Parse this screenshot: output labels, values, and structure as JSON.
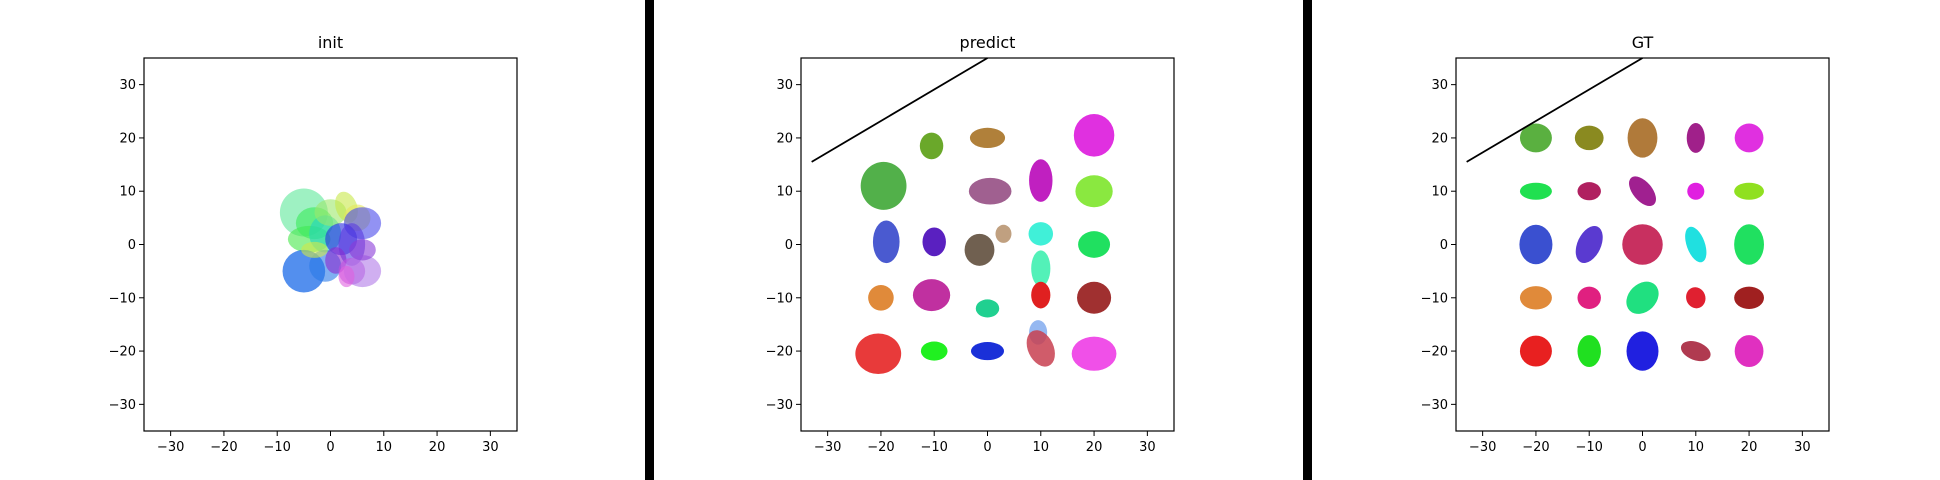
{
  "chart_data": [
    {
      "type": "scatter",
      "title": "init",
      "xlim": [
        -35,
        35
      ],
      "ylim": [
        -35,
        35
      ],
      "ticks": [
        -30,
        -20,
        -10,
        0,
        10,
        20,
        30
      ],
      "grid": false,
      "line": null,
      "ellipses": [
        {
          "cx": -5,
          "cy": 6,
          "rx": 4.5,
          "ry": 4.5,
          "angle": 0,
          "color": "#5ee89a",
          "opacity": 0.6
        },
        {
          "cx": -4,
          "cy": 1,
          "rx": 4,
          "ry": 2.5,
          "angle": 0,
          "color": "#46e84a",
          "opacity": 0.6
        },
        {
          "cx": -3,
          "cy": 4,
          "rx": 3.5,
          "ry": 3,
          "angle": 0,
          "color": "#3aeb5a",
          "opacity": 0.6
        },
        {
          "cx": -1,
          "cy": 2,
          "rx": 3,
          "ry": 3.5,
          "angle": 0,
          "color": "#22d6c0",
          "opacity": 0.6
        },
        {
          "cx": 0,
          "cy": 6,
          "rx": 3,
          "ry": 2.5,
          "angle": 0,
          "color": "#9ce86a",
          "opacity": 0.6
        },
        {
          "cx": 3,
          "cy": 7,
          "rx": 2,
          "ry": 3,
          "angle": 20,
          "color": "#c8e84a",
          "opacity": 0.6
        },
        {
          "cx": 5,
          "cy": 5,
          "rx": 2.5,
          "ry": 2.5,
          "angle": 0,
          "color": "#e4e85a",
          "opacity": 0.6
        },
        {
          "cx": 6,
          "cy": 4,
          "rx": 3.5,
          "ry": 3,
          "angle": 0,
          "color": "#4a4aeb",
          "opacity": 0.6
        },
        {
          "cx": 2,
          "cy": 1,
          "rx": 3,
          "ry": 3,
          "angle": 0,
          "color": "#2a2ae0",
          "opacity": 0.6
        },
        {
          "cx": 4,
          "cy": 0,
          "rx": 2.5,
          "ry": 4,
          "angle": 0,
          "color": "#5a3ae0",
          "opacity": 0.6
        },
        {
          "cx": -5,
          "cy": -5,
          "rx": 4,
          "ry": 4,
          "angle": 0,
          "color": "#1a6ae8",
          "opacity": 0.75
        },
        {
          "cx": -1,
          "cy": -4,
          "rx": 3,
          "ry": 3,
          "angle": 0,
          "color": "#2a7ae8",
          "opacity": 0.6
        },
        {
          "cx": 1,
          "cy": -3,
          "rx": 2,
          "ry": 2.5,
          "angle": 0,
          "color": "#8a2ad0",
          "opacity": 0.6
        },
        {
          "cx": 4,
          "cy": -5,
          "rx": 2.5,
          "ry": 2.5,
          "angle": 0,
          "color": "#c050e0",
          "opacity": 0.6
        },
        {
          "cx": 6,
          "cy": -5,
          "rx": 3.5,
          "ry": 3,
          "angle": 0,
          "color": "#b07ae8",
          "opacity": 0.6
        },
        {
          "cx": 6,
          "cy": -1,
          "rx": 2.5,
          "ry": 2,
          "angle": 0,
          "color": "#8a3ad8",
          "opacity": 0.6
        },
        {
          "cx": 3,
          "cy": -6,
          "rx": 1.5,
          "ry": 2,
          "angle": 0,
          "color": "#e060e0",
          "opacity": 0.6
        },
        {
          "cx": -3,
          "cy": -1,
          "rx": 2.5,
          "ry": 1.5,
          "angle": 0,
          "color": "#d0e84a",
          "opacity": 0.6
        }
      ]
    },
    {
      "type": "scatter",
      "title": "predict",
      "xlim": [
        -35,
        35
      ],
      "ylim": [
        -35,
        35
      ],
      "ticks": [
        -30,
        -20,
        -10,
        0,
        10,
        20,
        30
      ],
      "grid": false,
      "line": {
        "x1": -33,
        "y1": 15.5,
        "x2": 0,
        "y2": 35
      },
      "ellipses": [
        {
          "cx": -10.5,
          "cy": 18.5,
          "rx": 2.2,
          "ry": 2.5,
          "angle": 0,
          "color": "#6aa82a",
          "opacity": 1
        },
        {
          "cx": 0,
          "cy": 20,
          "rx": 3.3,
          "ry": 1.9,
          "angle": 0,
          "color": "#b0803a",
          "opacity": 1
        },
        {
          "cx": 20,
          "cy": 20.5,
          "rx": 3.8,
          "ry": 4,
          "angle": 0,
          "color": "#e030e0",
          "opacity": 1
        },
        {
          "cx": -19.5,
          "cy": 11,
          "rx": 4.3,
          "ry": 4.5,
          "angle": 0,
          "color": "#52b04a",
          "opacity": 1
        },
        {
          "cx": 0.5,
          "cy": 10,
          "rx": 4,
          "ry": 2.5,
          "angle": 0,
          "color": "#a06090",
          "opacity": 1
        },
        {
          "cx": 10,
          "cy": 12,
          "rx": 2.2,
          "ry": 4,
          "angle": 0,
          "color": "#c020c0",
          "opacity": 1
        },
        {
          "cx": 20,
          "cy": 10,
          "rx": 3.5,
          "ry": 3,
          "angle": 0,
          "color": "#8ae840",
          "opacity": 1
        },
        {
          "cx": -19,
          "cy": 0.5,
          "rx": 2.5,
          "ry": 4,
          "angle": 0,
          "color": "#4a5ad0",
          "opacity": 1
        },
        {
          "cx": -10,
          "cy": 0.5,
          "rx": 2.2,
          "ry": 2.7,
          "angle": 0,
          "color": "#5a20c0",
          "opacity": 1
        },
        {
          "cx": -1.5,
          "cy": -1,
          "rx": 2.8,
          "ry": 3,
          "angle": 0,
          "color": "#706050",
          "opacity": 1
        },
        {
          "cx": 3,
          "cy": 2,
          "rx": 1.5,
          "ry": 1.7,
          "angle": 0,
          "color": "#c0a080",
          "opacity": 1
        },
        {
          "cx": 10,
          "cy": 2,
          "rx": 2.3,
          "ry": 2.2,
          "angle": 0,
          "color": "#40f0d8",
          "opacity": 1
        },
        {
          "cx": 20,
          "cy": 0,
          "rx": 3,
          "ry": 2.5,
          "angle": 0,
          "color": "#20e060",
          "opacity": 1
        },
        {
          "cx": 10,
          "cy": -4.5,
          "rx": 1.8,
          "ry": 3.4,
          "angle": 0,
          "color": "#40f0b0",
          "opacity": 0.9
        },
        {
          "cx": -20,
          "cy": -10,
          "rx": 2.4,
          "ry": 2.4,
          "angle": 0,
          "color": "#e08a3a",
          "opacity": 1
        },
        {
          "cx": -10.5,
          "cy": -9.5,
          "rx": 3.5,
          "ry": 3,
          "angle": 0,
          "color": "#c030a0",
          "opacity": 1
        },
        {
          "cx": 0,
          "cy": -12,
          "rx": 2.2,
          "ry": 1.7,
          "angle": 0,
          "color": "#20d090",
          "opacity": 1
        },
        {
          "cx": 10,
          "cy": -9.5,
          "rx": 1.8,
          "ry": 2.5,
          "angle": 0,
          "color": "#e02020",
          "opacity": 1
        },
        {
          "cx": 20,
          "cy": -10,
          "rx": 3.2,
          "ry": 3,
          "angle": 0,
          "color": "#a03030",
          "opacity": 1
        },
        {
          "cx": 9.5,
          "cy": -16.5,
          "rx": 1.7,
          "ry": 2.3,
          "angle": 0,
          "color": "#8ab0f0",
          "opacity": 0.9
        },
        {
          "cx": -20.5,
          "cy": -20.5,
          "rx": 4.3,
          "ry": 3.8,
          "angle": 0,
          "color": "#e83a3a",
          "opacity": 1
        },
        {
          "cx": -10,
          "cy": -20,
          "rx": 2.5,
          "ry": 1.8,
          "angle": 0,
          "color": "#20f020",
          "opacity": 1
        },
        {
          "cx": 0,
          "cy": -20,
          "rx": 3.1,
          "ry": 1.7,
          "angle": 0,
          "color": "#1a30d8",
          "opacity": 1
        },
        {
          "cx": 10,
          "cy": -19.5,
          "rx": 2.4,
          "ry": 3.6,
          "angle": 25,
          "color": "#c84050",
          "opacity": 0.85
        },
        {
          "cx": 20,
          "cy": -20.5,
          "rx": 4.2,
          "ry": 3.2,
          "angle": 0,
          "color": "#f050e8",
          "opacity": 1
        }
      ]
    },
    {
      "type": "scatter",
      "title": "GT",
      "xlim": [
        -35,
        35
      ],
      "ylim": [
        -35,
        35
      ],
      "ticks": [
        -30,
        -20,
        -10,
        0,
        10,
        20,
        30
      ],
      "grid": false,
      "line": {
        "x1": -33,
        "y1": 15.5,
        "x2": 0,
        "y2": 35
      },
      "ellipses": [
        {
          "cx": -20,
          "cy": 20,
          "rx": 3,
          "ry": 2.7,
          "angle": 0,
          "color": "#5ab040",
          "opacity": 1
        },
        {
          "cx": -10,
          "cy": 20,
          "rx": 2.7,
          "ry": 2.3,
          "angle": 0,
          "color": "#8a8a20",
          "opacity": 1
        },
        {
          "cx": 0,
          "cy": 20,
          "rx": 2.8,
          "ry": 3.7,
          "angle": 0,
          "color": "#b07a3a",
          "opacity": 1
        },
        {
          "cx": 10,
          "cy": 20,
          "rx": 1.7,
          "ry": 2.8,
          "angle": 0,
          "color": "#a0208a",
          "opacity": 1
        },
        {
          "cx": 20,
          "cy": 20,
          "rx": 2.7,
          "ry": 2.7,
          "angle": 0,
          "color": "#e030e0",
          "opacity": 1
        },
        {
          "cx": -20,
          "cy": 10,
          "rx": 3,
          "ry": 1.6,
          "angle": 0,
          "color": "#20e050",
          "opacity": 1
        },
        {
          "cx": -10,
          "cy": 10,
          "rx": 2.2,
          "ry": 1.7,
          "angle": 0,
          "color": "#b02060",
          "opacity": 1
        },
        {
          "cx": 0,
          "cy": 10,
          "rx": 1.8,
          "ry": 3.3,
          "angle": 40,
          "color": "#a02090",
          "opacity": 1
        },
        {
          "cx": 10,
          "cy": 10,
          "rx": 1.6,
          "ry": 1.6,
          "angle": 0,
          "color": "#e020e0",
          "opacity": 1
        },
        {
          "cx": 20,
          "cy": 10,
          "rx": 2.8,
          "ry": 1.6,
          "angle": 0,
          "color": "#90e020",
          "opacity": 1
        },
        {
          "cx": -20,
          "cy": 0,
          "rx": 3.1,
          "ry": 3.7,
          "angle": 0,
          "color": "#3a50d0",
          "opacity": 1
        },
        {
          "cx": -10,
          "cy": 0,
          "rx": 2.2,
          "ry": 3.7,
          "angle": -25,
          "color": "#5a3ad0",
          "opacity": 1
        },
        {
          "cx": 0,
          "cy": 0,
          "rx": 3.8,
          "ry": 3.8,
          "angle": 0,
          "color": "#c83060",
          "opacity": 1
        },
        {
          "cx": 10,
          "cy": 0,
          "rx": 1.7,
          "ry": 3.5,
          "angle": 20,
          "color": "#20e0e0",
          "opacity": 1
        },
        {
          "cx": 20,
          "cy": 0,
          "rx": 2.8,
          "ry": 3.8,
          "angle": 0,
          "color": "#20e060",
          "opacity": 1
        },
        {
          "cx": -20,
          "cy": -10,
          "rx": 3,
          "ry": 2.2,
          "angle": 0,
          "color": "#e08a3a",
          "opacity": 1
        },
        {
          "cx": -10,
          "cy": -10,
          "rx": 2.2,
          "ry": 2.1,
          "angle": 0,
          "color": "#e02080",
          "opacity": 1
        },
        {
          "cx": 0,
          "cy": -10,
          "rx": 2.6,
          "ry": 3.4,
          "angle": -45,
          "color": "#20e080",
          "opacity": 1
        },
        {
          "cx": 10,
          "cy": -10,
          "rx": 1.8,
          "ry": 2,
          "angle": 20,
          "color": "#e02030",
          "opacity": 1
        },
        {
          "cx": 20,
          "cy": -10,
          "rx": 2.8,
          "ry": 2.1,
          "angle": 0,
          "color": "#a02020",
          "opacity": 1
        },
        {
          "cx": -20,
          "cy": -20,
          "rx": 3,
          "ry": 2.9,
          "angle": 0,
          "color": "#e82020",
          "opacity": 1
        },
        {
          "cx": -10,
          "cy": -20,
          "rx": 2.2,
          "ry": 3,
          "angle": 0,
          "color": "#20e020",
          "opacity": 1
        },
        {
          "cx": 0,
          "cy": -20,
          "rx": 3,
          "ry": 3.7,
          "angle": 0,
          "color": "#2020e0",
          "opacity": 1
        },
        {
          "cx": 10,
          "cy": -20,
          "rx": 2.9,
          "ry": 1.7,
          "angle": -20,
          "color": "#b03a50",
          "opacity": 1
        },
        {
          "cx": 20,
          "cy": -20,
          "rx": 2.7,
          "ry": 3,
          "angle": 0,
          "color": "#e030c0",
          "opacity": 1
        }
      ]
    }
  ]
}
